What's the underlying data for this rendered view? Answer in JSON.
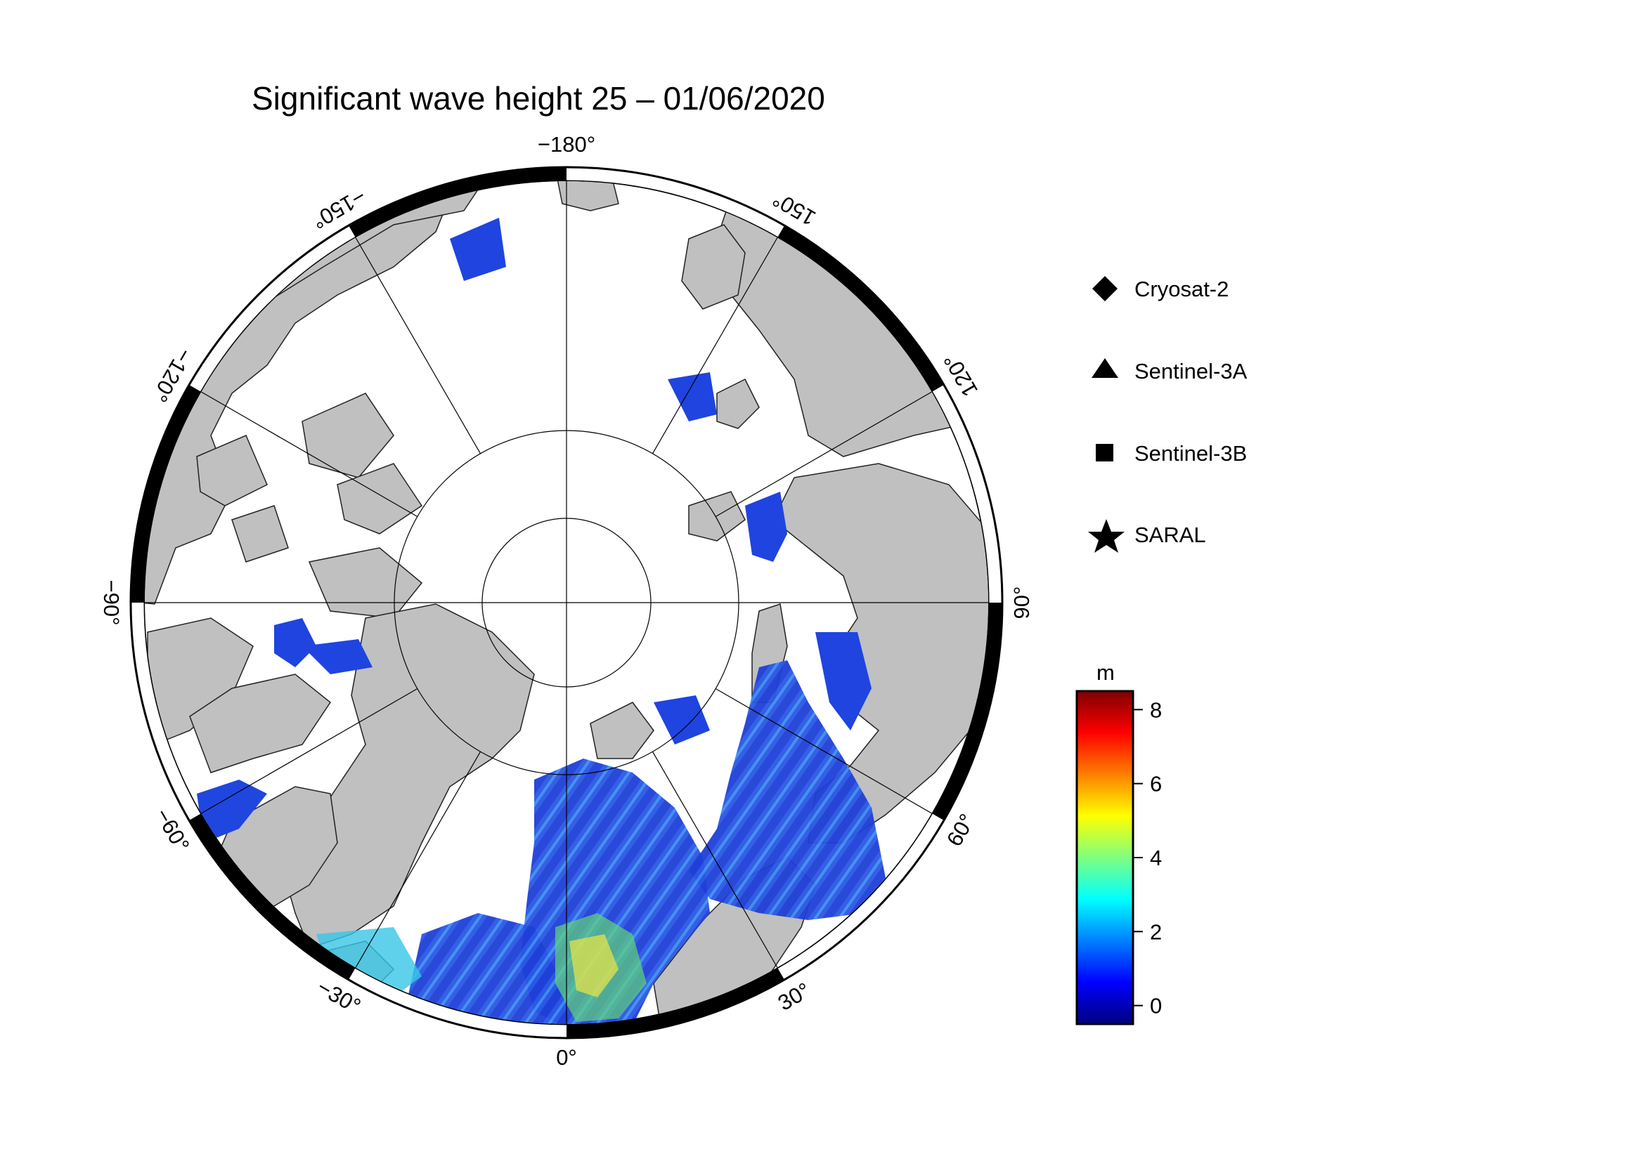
{
  "title": "Significant wave height 25 – 01/06/2020",
  "map": {
    "projection": "north polar stereographic",
    "longitude_labels": [
      {
        "lon": -180,
        "text": "−180°"
      },
      {
        "lon": -150,
        "text": "−150°"
      },
      {
        "lon": -120,
        "text": "−120°"
      },
      {
        "lon": -90,
        "text": "−90°"
      },
      {
        "lon": -60,
        "text": "−60°"
      },
      {
        "lon": -30,
        "text": "−30°"
      },
      {
        "lon": 0,
        "text": "0°"
      },
      {
        "lon": 30,
        "text": "30°"
      },
      {
        "lon": 60,
        "text": "60°"
      },
      {
        "lon": 90,
        "text": "90°"
      },
      {
        "lon": 120,
        "text": "120°"
      },
      {
        "lon": 150,
        "text": "150°"
      }
    ],
    "colors": {
      "land": "#c0c0c0",
      "ocean": "#ffffff",
      "frame": "#000000"
    }
  },
  "legend": {
    "items": [
      {
        "label": "Cryosat-2",
        "symbol": "diamond"
      },
      {
        "label": "Sentinel-3A",
        "symbol": "triangle"
      },
      {
        "label": "Sentinel-3B",
        "symbol": "square"
      },
      {
        "label": "SARAL",
        "symbol": "star"
      }
    ]
  },
  "colorbar": {
    "unit": "m",
    "ticks": [
      "8",
      "6",
      "4",
      "2",
      "0"
    ],
    "tick_values": [
      8,
      6,
      4,
      2,
      0
    ],
    "range": [
      -0.5,
      8.5
    ],
    "colormap": "jet"
  }
}
